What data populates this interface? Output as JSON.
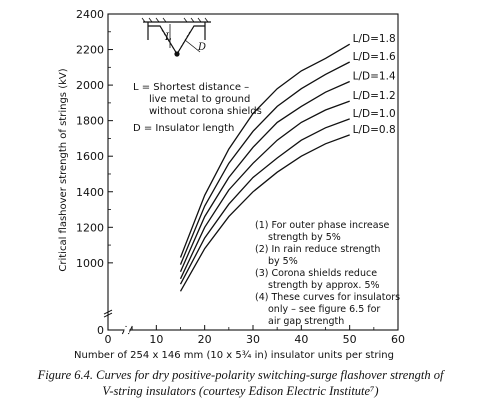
{
  "chart_data": {
    "type": "line",
    "xlabel": "Number of 254 x 146 mm (10 x 5¾ in) insulator units per string",
    "ylabel": "Critical flashover strength of strings (kV)",
    "xlim": [
      0,
      60
    ],
    "ylim": [
      800,
      2400
    ],
    "x_ticks": [
      "0",
      "10",
      "20",
      "30",
      "40",
      "50",
      "60"
    ],
    "y_ticks": [
      "1000",
      "1200",
      "1400",
      "1600",
      "1800",
      "2000",
      "2200",
      "2400"
    ],
    "axis_break": true,
    "grid": false,
    "series": [
      {
        "name": "L/D=1.8",
        "x": [
          15,
          20,
          25,
          30,
          35,
          40,
          45,
          50
        ],
        "y": [
          1030,
          1380,
          1640,
          1840,
          1980,
          2080,
          2150,
          2230
        ]
      },
      {
        "name": "L/D=1.6",
        "x": [
          15,
          20,
          25,
          30,
          35,
          40,
          45,
          50
        ],
        "y": [
          990,
          1320,
          1560,
          1740,
          1880,
          1980,
          2060,
          2130
        ]
      },
      {
        "name": "L/D=1.4",
        "x": [
          15,
          20,
          25,
          30,
          35,
          40,
          45,
          50
        ],
        "y": [
          950,
          1260,
          1480,
          1650,
          1790,
          1880,
          1960,
          2020
        ]
      },
      {
        "name": "L/D=1.2",
        "x": [
          15,
          20,
          25,
          30,
          35,
          40,
          45,
          50
        ],
        "y": [
          910,
          1200,
          1410,
          1560,
          1690,
          1790,
          1860,
          1910
        ]
      },
      {
        "name": "L/D=1.0",
        "x": [
          15,
          20,
          25,
          30,
          35,
          40,
          45,
          50
        ],
        "y": [
          880,
          1140,
          1330,
          1480,
          1590,
          1690,
          1760,
          1810
        ]
      },
      {
        "name": "L/D=0.8",
        "x": [
          15,
          20,
          25,
          30,
          35,
          40,
          45,
          50
        ],
        "y": [
          840,
          1080,
          1260,
          1400,
          1510,
          1600,
          1670,
          1720
        ]
      }
    ],
    "inset": {
      "symbol_l": "L",
      "symbol_d": "D",
      "l_definition": [
        "L = Shortest distance –",
        "live metal to ground",
        "without corona shields"
      ],
      "d_definition": "D = Insulator length"
    },
    "notes": [
      "(1) For outer phase increase",
      "strength by 5%",
      "(2) In rain reduce strength",
      "by 5%",
      "(3) Corona shields reduce",
      "strength by approx. 5%",
      "(4) These curves for insulators",
      "only – see figure 6.5 for",
      "air gap strength"
    ]
  },
  "caption": {
    "line1": "Figure 6.4. Curves for dry positive-polarity switching-surge flashover strength of",
    "line2": "V-string insulators (courtesy Edison Electric Institute⁷)"
  }
}
